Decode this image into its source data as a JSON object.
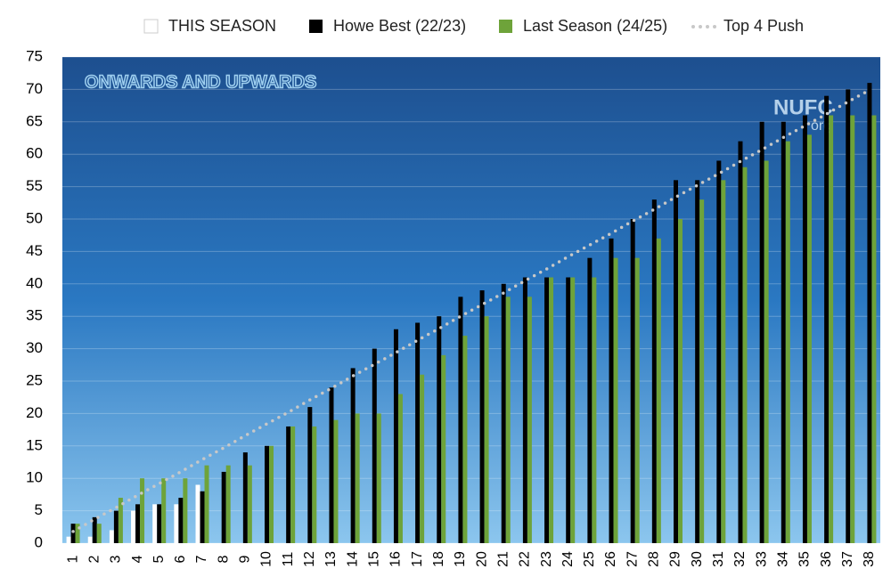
{
  "chart_data": {
    "type": "bar",
    "title": "ONWARDS AND UPWARDS",
    "logo_text": "NUFC",
    "logo_subtext": "org",
    "categories": [
      "1",
      "2",
      "3",
      "4",
      "5",
      "6",
      "7",
      "8",
      "9",
      "10",
      "11",
      "12",
      "13",
      "14",
      "15",
      "16",
      "17",
      "18",
      "19",
      "20",
      "21",
      "22",
      "23",
      "24",
      "25",
      "26",
      "27",
      "28",
      "29",
      "30",
      "31",
      "32",
      "33",
      "34",
      "35",
      "36",
      "37",
      "38"
    ],
    "series": [
      {
        "name": "THIS SEASON",
        "color": "#ffffff",
        "values": [
          1,
          1,
          2,
          5,
          6,
          6,
          9,
          null,
          null,
          null,
          null,
          null,
          null,
          null,
          null,
          null,
          null,
          null,
          null,
          null,
          null,
          null,
          null,
          null,
          null,
          null,
          null,
          null,
          null,
          null,
          null,
          null,
          null,
          null,
          null,
          null,
          null,
          null
        ]
      },
      {
        "name": "Howe Best (22/23)",
        "color": "#000000",
        "values": [
          3,
          4,
          5,
          6,
          6,
          7,
          8,
          11,
          14,
          15,
          18,
          21,
          24,
          27,
          30,
          33,
          34,
          35,
          38,
          39,
          40,
          41,
          41,
          41,
          44,
          47,
          50,
          53,
          56,
          56,
          59,
          62,
          65,
          65,
          66,
          69,
          70,
          71
        ]
      },
      {
        "name": "Last Season (24/25)",
        "color": "#6ea33a",
        "values": [
          3,
          3,
          7,
          10,
          10,
          10,
          12,
          12,
          12,
          15,
          18,
          18,
          19,
          20,
          20,
          23,
          26,
          29,
          32,
          35,
          38,
          38,
          41,
          41,
          41,
          44,
          44,
          47,
          50,
          53,
          56,
          58,
          59,
          62,
          63,
          66,
          66,
          66
        ]
      },
      {
        "name": "Top 4 Push",
        "color": "#c8c8c8",
        "style": "dotted",
        "values": [
          1.8,
          3.7,
          5.5,
          7.4,
          9.2,
          11,
          12.9,
          14.7,
          16.6,
          18.4,
          20.2,
          22.1,
          23.9,
          25.8,
          27.6,
          29.4,
          31.3,
          33.1,
          35,
          36.8,
          38.6,
          40.5,
          42.3,
          44.2,
          46,
          47.8,
          49.7,
          51.5,
          53.4,
          55.2,
          57,
          58.9,
          60.7,
          62.6,
          64.4,
          66.2,
          68.1,
          69.9
        ]
      }
    ],
    "ylim": [
      0,
      75
    ],
    "yticks": [
      0,
      5,
      10,
      15,
      20,
      25,
      30,
      35,
      40,
      45,
      50,
      55,
      60,
      65,
      70,
      75
    ],
    "grid": true,
    "legend": "top"
  }
}
